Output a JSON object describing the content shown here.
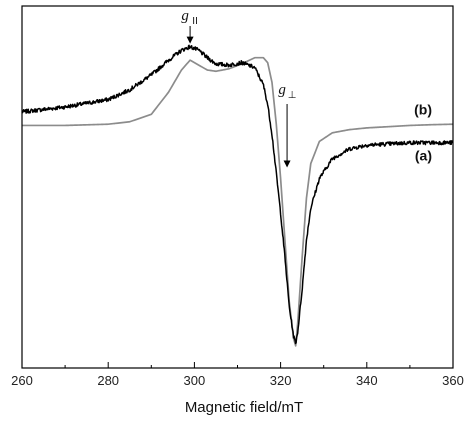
{
  "chart_data": {
    "type": "line",
    "xlabel": "Magnetic field/mT",
    "ylabel": "",
    "xlim": [
      260,
      360
    ],
    "xticks": [
      "260",
      "280",
      "300",
      "320",
      "340",
      "360"
    ],
    "yticks": [],
    "grid": false,
    "series": [
      {
        "name": "(a)",
        "color": "#000000",
        "noisy": true,
        "x": [
          260,
          270,
          280,
          285,
          290,
          294,
          297,
          299,
          301,
          303,
          305,
          308,
          311,
          314,
          316,
          317,
          318,
          319,
          320,
          321,
          322,
          323,
          323.5,
          324,
          325,
          326,
          327,
          329,
          332,
          336,
          340,
          345,
          350,
          355,
          360
        ],
        "y": [
          0.47,
          0.49,
          0.52,
          0.56,
          0.62,
          0.68,
          0.72,
          0.735,
          0.72,
          0.69,
          0.665,
          0.66,
          0.67,
          0.65,
          0.58,
          0.5,
          0.38,
          0.22,
          0.06,
          -0.12,
          -0.32,
          -0.44,
          -0.47,
          -0.42,
          -0.25,
          -0.05,
          0.08,
          0.2,
          0.28,
          0.32,
          0.335,
          0.34,
          0.345,
          0.345,
          0.345
        ]
      },
      {
        "name": "(b)",
        "color": "#8c8c8c",
        "noisy": false,
        "x": [
          260,
          270,
          280,
          285,
          290,
          294,
          297,
          299,
          301,
          303,
          305,
          308,
          311,
          314,
          316,
          317,
          318,
          319,
          320,
          321,
          322,
          323,
          323.5,
          324,
          325,
          326,
          327,
          329,
          332,
          336,
          340,
          345,
          350,
          355,
          360
        ],
        "y": [
          0.415,
          0.415,
          0.42,
          0.43,
          0.46,
          0.55,
          0.64,
          0.68,
          0.66,
          0.64,
          0.635,
          0.645,
          0.665,
          0.69,
          0.69,
          0.67,
          0.59,
          0.42,
          0.2,
          -0.05,
          -0.3,
          -0.45,
          -0.48,
          -0.38,
          -0.12,
          0.12,
          0.26,
          0.35,
          0.385,
          0.398,
          0.405,
          0.41,
          0.415,
          0.418,
          0.42
        ]
      }
    ],
    "annotations": [
      {
        "main": "g",
        "sub": "II",
        "x": 299,
        "at_y": 0.735
      },
      {
        "main": "g",
        "sub": "⊥",
        "x": 321.5,
        "at_y": 0.22
      }
    ],
    "curve_labels": [
      {
        "text": "(b)",
        "series": 1
      },
      {
        "text": "(a)",
        "series": 0
      }
    ]
  }
}
